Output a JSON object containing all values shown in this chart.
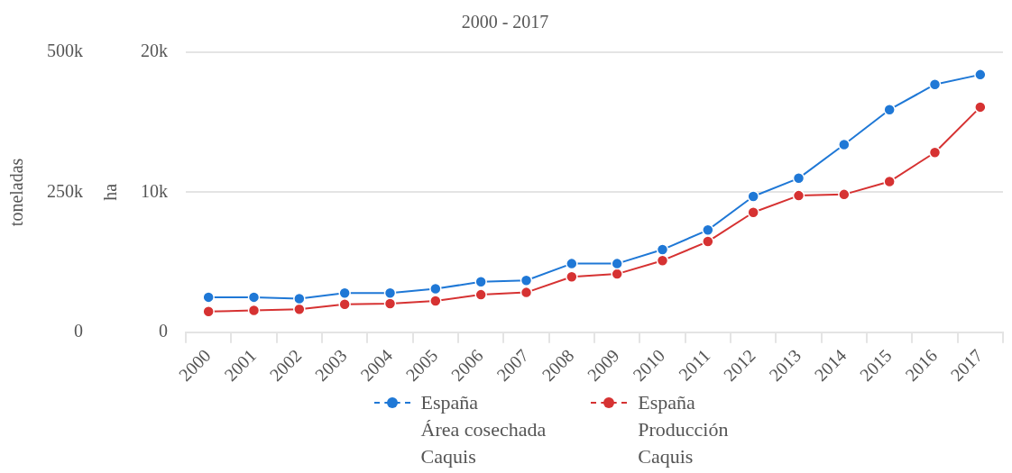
{
  "chart_data": {
    "type": "line",
    "title": "2000 - 2017",
    "ylabel": "toneladas",
    "y2label": "ha",
    "categories": [
      "2000",
      "2001",
      "2002",
      "2003",
      "2004",
      "2005",
      "2006",
      "2007",
      "2008",
      "2009",
      "2010",
      "2011",
      "2012",
      "2013",
      "2014",
      "2015",
      "2016",
      "2017"
    ],
    "series": [
      {
        "name": "España\nÁrea cosechada\nCaquis",
        "color": "#1f78d6",
        "axis": "y2",
        "values": [
          2500,
          2500,
          2400,
          2800,
          2800,
          3100,
          3600,
          3700,
          4900,
          4900,
          5900,
          7300,
          9700,
          11000,
          13400,
          15900,
          17700,
          18400
        ]
      },
      {
        "name": "España\nProducción\nCaquis",
        "color": "#d63232",
        "axis": "y",
        "values": [
          37000,
          39000,
          41000,
          50000,
          51000,
          56000,
          67000,
          71000,
          99000,
          104000,
          128000,
          162000,
          214000,
          244000,
          246000,
          269000,
          321000,
          402000
        ]
      }
    ],
    "ylim": [
      0,
      500000
    ],
    "yticks": [
      0,
      {
        "value": 250000,
        "label": "250k"
      },
      {
        "value": 500000,
        "label": "500k"
      }
    ],
    "y2lim": [
      0,
      20000
    ],
    "y2ticks": [
      0,
      {
        "value": 10000,
        "label": "10k"
      },
      {
        "value": 20000,
        "label": "20k"
      }
    ],
    "grid": "y",
    "legend": "bottom",
    "marker": "circle",
    "line_style": "solid"
  }
}
